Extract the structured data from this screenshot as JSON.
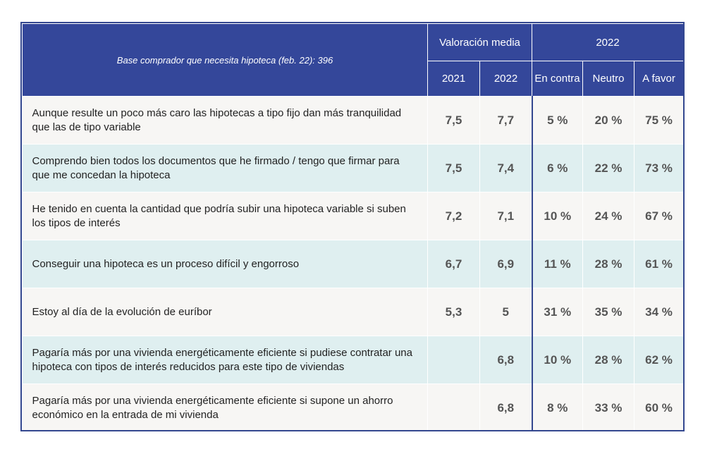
{
  "header": {
    "base": "Base comprador que necesita hipoteca (feb. 22): 396",
    "group_valoracion": "Valoración media",
    "group_2022": "2022",
    "col_2021": "2021",
    "col_2022": "2022",
    "col_en_contra": "En contra",
    "col_neutro": "Neutro",
    "col_a_favor": "A favor"
  },
  "colors": {
    "header_bg": "#34479a",
    "row_light": "#f7f6f4",
    "row_teal": "#dfeff0",
    "text": "#222222",
    "value_text": "#555555"
  },
  "chart_data": {
    "type": "table",
    "columns": [
      "Valoración media 2021",
      "Valoración media 2022",
      "En contra",
      "Neutro",
      "A favor"
    ],
    "rows": [
      {
        "statement": "Aunque resulte un poco más caro las hipotecas a tipo fijo dan más tranquilidad que las de tipo variable",
        "v2021": "7,5",
        "v2022": "7,7",
        "en_contra": "5 %",
        "neutro": "20 %",
        "a_favor": "75 %"
      },
      {
        "statement": "Comprendo bien todos los documentos que he firmado / tengo que firmar para que me concedan la hipoteca",
        "v2021": "7,5",
        "v2022": "7,4",
        "en_contra": "6 %",
        "neutro": "22 %",
        "a_favor": "73 %"
      },
      {
        "statement": "He tenido en cuenta la cantidad que podría subir una hipoteca variable si suben los tipos de interés",
        "v2021": "7,2",
        "v2022": "7,1",
        "en_contra": "10 %",
        "neutro": "24 %",
        "a_favor": "67 %"
      },
      {
        "statement": "Conseguir una hipoteca es un proceso difícil y engorroso",
        "v2021": "6,7",
        "v2022": "6,9",
        "en_contra": "11 %",
        "neutro": "28 %",
        "a_favor": "61 %"
      },
      {
        "statement": "Estoy al día de la evolución de euríbor",
        "v2021": "5,3",
        "v2022": "5",
        "en_contra": "31 %",
        "neutro": "35 %",
        "a_favor": "34 %"
      },
      {
        "statement": "Pagaría más por una vivienda energéticamente eficiente si pudiese contratar una hipoteca con tipos de interés reducidos para este tipo de viviendas",
        "v2021": "",
        "v2022": "6,8",
        "en_contra": "10 %",
        "neutro": "28 %",
        "a_favor": "62 %"
      },
      {
        "statement": "Pagaría más por una vivienda energéticamente eficiente si supone un ahorro económico en la entrada de mi vivienda",
        "v2021": "",
        "v2022": "6,8",
        "en_contra": "8 %",
        "neutro": "33 %",
        "a_favor": "60 %"
      }
    ]
  }
}
